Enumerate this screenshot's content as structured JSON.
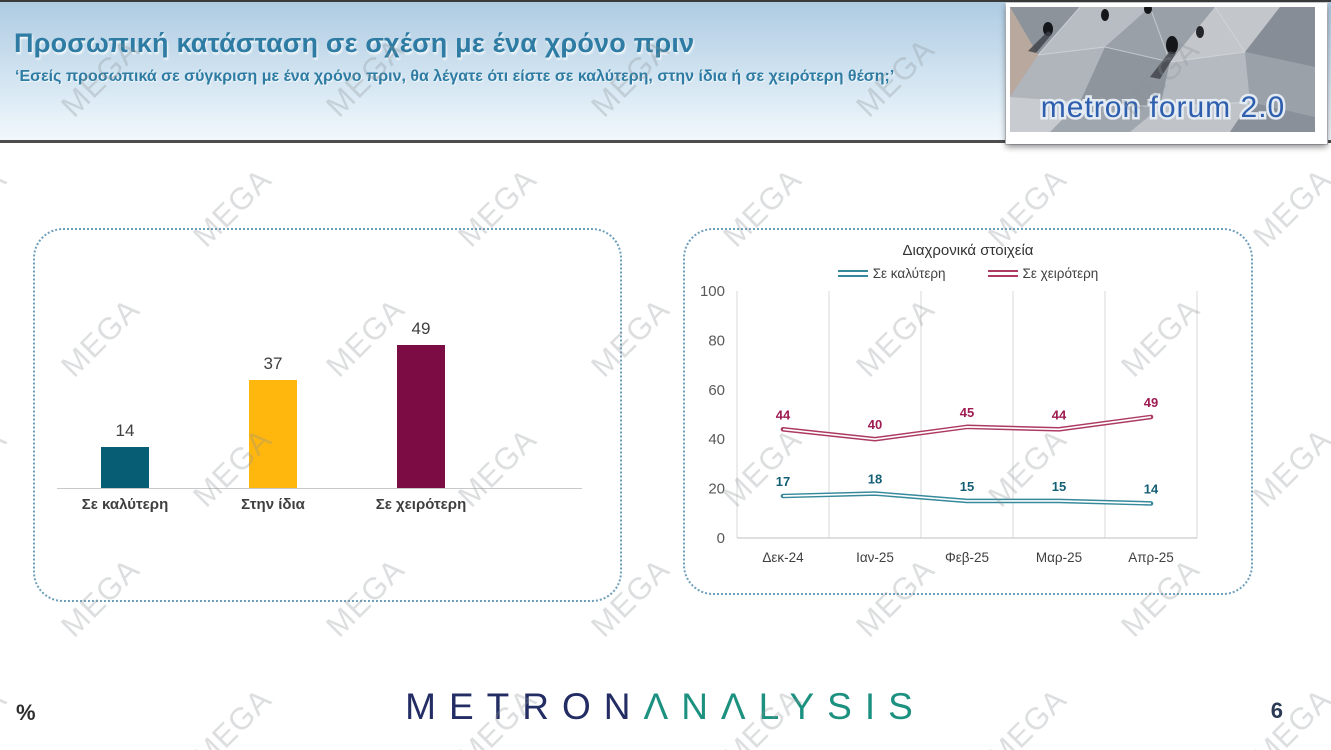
{
  "header": {
    "title": "Προσωπική κατάσταση σε σχέση με ένα χρόνο πριν",
    "subtitle": "‘Εσείς προσωπικά σε σύγκριση με ένα χρόνο πριν, θα λέγατε ότι είστε σε καλύτερη, στην ίδια ή σε χειρότερη θέση;’"
  },
  "logo": {
    "text": "metron forum 2.0"
  },
  "watermark": {
    "text": "MEGA"
  },
  "footer": {
    "brand_metron": "METRON",
    "brand_analysis": "ΛNΛLYSIS",
    "percent_label": "%",
    "page_number": "6"
  },
  "colors": {
    "header_text": "#2E7CA3",
    "bar_better": "#075D74",
    "bar_same": "#FFB70D",
    "bar_worse": "#7B0C44",
    "line_better": "#36899B",
    "line_worse": "#AD3A63",
    "brand_navy": "#232D64",
    "brand_green": "#1D9180"
  },
  "chart_data": [
    {
      "type": "bar",
      "title": "",
      "categories": [
        "Σε καλύτερη",
        "Στην ίδια",
        "Σε χειρότερη"
      ],
      "values": [
        14,
        37,
        49
      ],
      "bar_colors": [
        "#075D74",
        "#FFB70D",
        "#7B0C44"
      ],
      "ylim": [
        0,
        55
      ],
      "grid": "off",
      "data_labels": true
    },
    {
      "type": "line",
      "title": "Διαχρονικά στοιχεία",
      "categories": [
        "Δεκ-24",
        "Ιαν-25",
        "Φεβ-25",
        "Μαρ-25",
        "Απρ-25"
      ],
      "series": [
        {
          "name": "Σε καλύτερη",
          "values": [
            17,
            18,
            15,
            15,
            14
          ],
          "color": "#36899B",
          "label_color": "#145F75"
        },
        {
          "name": "Σε χειρότερη",
          "values": [
            44,
            40,
            45,
            44,
            49
          ],
          "color": "#AD3A63",
          "label_color": "#9E1C52"
        }
      ],
      "ylim": [
        0,
        100
      ],
      "yticks": [
        0,
        20,
        40,
        60,
        80,
        100
      ],
      "legend_position": "top",
      "grid": "vertical-gridlines",
      "line_style": "double"
    }
  ]
}
